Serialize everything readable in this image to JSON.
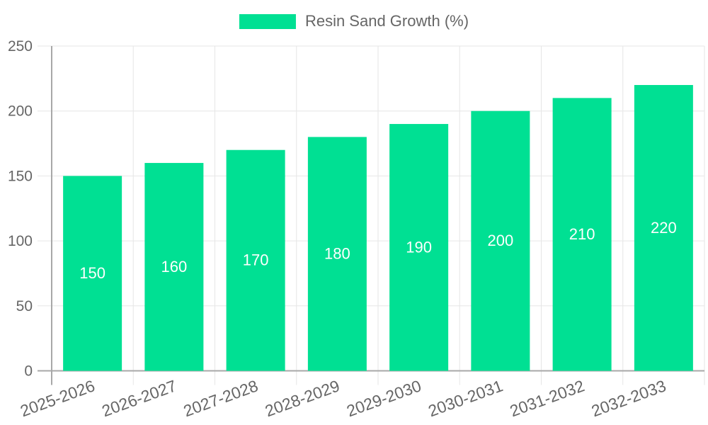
{
  "chart_data": {
    "type": "bar",
    "title": "",
    "legend": {
      "label": "Resin Sand Growth (%)",
      "position": "top",
      "marker_color": "#00e093"
    },
    "categories": [
      "2025-2026",
      "2026-2027",
      "2027-2028",
      "2028-2029",
      "2029-2030",
      "2030-2031",
      "2031-2032",
      "2032-2033"
    ],
    "series": [
      {
        "name": "Resin Sand Growth (%)",
        "values": [
          150,
          160,
          170,
          180,
          190,
          200,
          210,
          220
        ]
      }
    ],
    "value_labels": [
      "150",
      "160",
      "170",
      "180",
      "190",
      "200",
      "210",
      "220"
    ],
    "xlabel": "",
    "ylabel": "",
    "ylim": [
      0,
      250
    ],
    "yticks": [
      0,
      50,
      100,
      150,
      200,
      250
    ],
    "grid": true,
    "colors": {
      "bar": "#00e093",
      "value_label": "#ffffff",
      "grid_line": "#e6e6e6",
      "axis_line": "#a8a8a8",
      "tick_label": "#666666",
      "background": "#ffffff"
    },
    "x_label_rotation_deg": -20
  }
}
